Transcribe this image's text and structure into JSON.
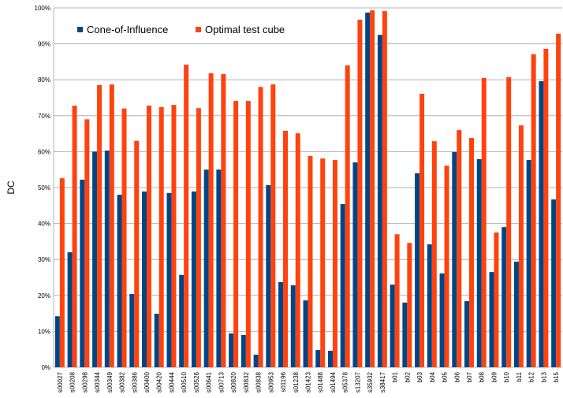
{
  "chart_data": {
    "type": "bar",
    "y_label": "DC",
    "categories": [
      "s00027",
      "s00208",
      "s00298",
      "s00344",
      "s00349",
      "s00382",
      "s00386",
      "s00400",
      "s00420",
      "s00444",
      "s00510",
      "s00526",
      "s00641",
      "s00713",
      "s00820",
      "s00832",
      "s00838",
      "s00953",
      "s01196",
      "s01238",
      "s01423",
      "s01488",
      "s01494",
      "s05378",
      "s13207",
      "s35932",
      "s38417",
      "b01",
      "b02",
      "b03",
      "b04",
      "b05",
      "b06",
      "b07",
      "b08",
      "b09",
      "b10",
      "b11",
      "b12",
      "b13",
      "b15"
    ],
    "series": [
      {
        "name": "Cone-of-Influence",
        "color": "#004586",
        "values": [
          14.2,
          32,
          52.2,
          60,
          60.3,
          48,
          20.4,
          48.9,
          14.9,
          48.5,
          25.7,
          48.9,
          55,
          55,
          9.4,
          9,
          3.5,
          50.7,
          23.7,
          22.8,
          18.6,
          4.8,
          4.6,
          45.4,
          57,
          98.7,
          92.5,
          23,
          18,
          54,
          34.2,
          26.1,
          59.9,
          18.4,
          57.9,
          26.5,
          39,
          29.4,
          57.7,
          79.6,
          46.7
        ]
      },
      {
        "name": "Optimal test cube",
        "color": "#ff420e",
        "values": [
          52.6,
          72.8,
          69,
          78.5,
          78.7,
          72,
          63,
          72.8,
          72.4,
          73,
          84.2,
          72.1,
          81.8,
          81.6,
          74.1,
          74.1,
          78,
          78.7,
          65.8,
          65.1,
          58.8,
          58.1,
          57.7,
          84,
          96.7,
          99.3,
          99.1,
          37,
          34.6,
          76.1,
          62.9,
          56.1,
          66,
          63.8,
          80.5,
          37.5,
          80.7,
          67.3,
          87.1,
          88.6,
          92.8
        ]
      }
    ],
    "ylim": [
      0,
      100
    ],
    "yticks": [
      {
        "value": 0,
        "label": "0%"
      },
      {
        "value": 10,
        "label": "10%"
      },
      {
        "value": 20,
        "label": "20%"
      },
      {
        "value": 30,
        "label": "30%"
      },
      {
        "value": 40,
        "label": "40%"
      },
      {
        "value": 50,
        "label": "50%"
      },
      {
        "value": 60,
        "label": "60%"
      },
      {
        "value": 70,
        "label": "70%"
      },
      {
        "value": 80,
        "label": "80%"
      },
      {
        "value": 90,
        "label": "90%"
      },
      {
        "value": 100,
        "label": "100%"
      }
    ],
    "grid": true,
    "legend": "top-left"
  }
}
